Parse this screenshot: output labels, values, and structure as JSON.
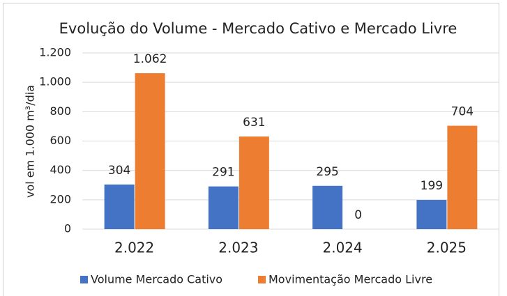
{
  "chart_data": {
    "type": "bar",
    "title": "Evolução do Volume - Mercado Cativo e Mercado Livre",
    "y_label": "vol em 1.000 m³/dia",
    "categories": [
      "2.022",
      "2.023",
      "2.024",
      "2.025"
    ],
    "series": [
      {
        "name": "Volume Mercado Cativo",
        "color": "#4472c4",
        "values": [
          304,
          291,
          295,
          199
        ]
      },
      {
        "name": "Movimentação Mercado Livre",
        "color": "#ed7d31",
        "values": [
          1062,
          631,
          0,
          704
        ],
        "value_labels": [
          "1.062",
          "631",
          "0",
          "704"
        ]
      }
    ],
    "ylim": [
      0,
      1200
    ],
    "yticks": [
      0,
      200,
      400,
      600,
      800,
      {
        "value": 1000,
        "label": "1.000"
      },
      {
        "value": 1200,
        "label": "1.200"
      }
    ],
    "grid": true,
    "legend": "bottom"
  }
}
